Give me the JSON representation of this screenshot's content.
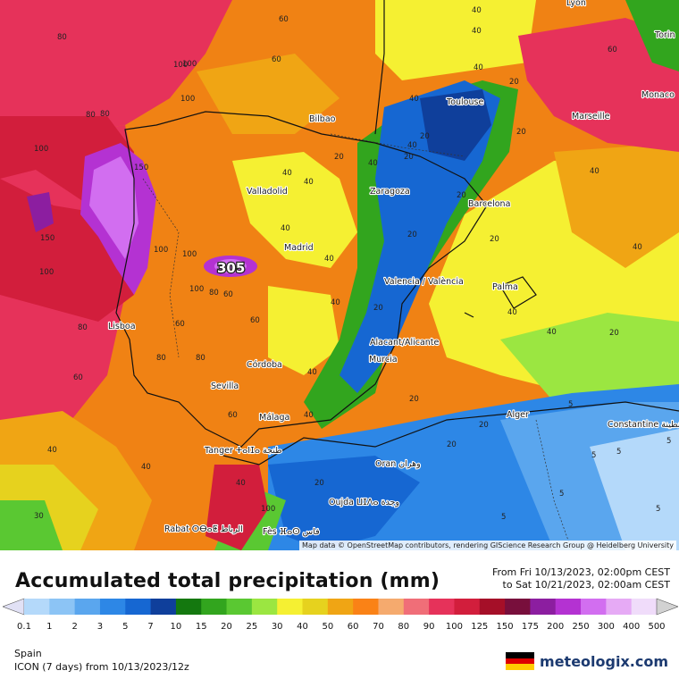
{
  "map": {
    "attribution": "Map data © OpenStreetMap contributors, rendering GIScience Research Group @ Heidelberg University",
    "max_label": "305",
    "cities": [
      {
        "name": "Bilbao"
      },
      {
        "name": "Toulouse"
      },
      {
        "name": "Marseille"
      },
      {
        "name": "Lyon"
      },
      {
        "name": "Torin"
      },
      {
        "name": "Monaco"
      },
      {
        "name": "Valladolid"
      },
      {
        "name": "Zaragoza"
      },
      {
        "name": "Barcelona"
      },
      {
        "name": "Madrid"
      },
      {
        "name": "Valencia / València"
      },
      {
        "name": "Palma"
      },
      {
        "name": "Lisboa"
      },
      {
        "name": "Alacant/Alicante"
      },
      {
        "name": "Murcia"
      },
      {
        "name": "Córdoba"
      },
      {
        "name": "Sevilla"
      },
      {
        "name": "Málaga"
      },
      {
        "name": "Alger"
      },
      {
        "name": "Constantine قسنطينة"
      },
      {
        "name": "Tanger ⵜⴰⵏⵊⴰ طنجة"
      },
      {
        "name": "Oran وهران"
      },
      {
        "name": "Oujda ⵡⵊⴷⴰ وجدة"
      },
      {
        "name": "Rabat ⵔⴱⴰⵟ الرباط"
      },
      {
        "name": "Fès ⴼⴰⵙ فاس"
      }
    ],
    "contour_labels": [
      "60",
      "60",
      "80",
      "100",
      "80",
      "100",
      "100",
      "150",
      "150",
      "100",
      "100",
      "80",
      "60",
      "40",
      "40",
      "40",
      "40",
      "40",
      "20",
      "20",
      "20",
      "20",
      "40",
      "40",
      "40",
      "20",
      "20",
      "40",
      "60",
      "40",
      "80",
      "80",
      "60",
      "60",
      "40",
      "20",
      "5",
      "5",
      "5",
      "20",
      "40",
      "30",
      "40",
      "60",
      "80",
      "100",
      "20",
      "40",
      "20",
      "40",
      "60",
      "100",
      "40",
      "20",
      "40",
      "20",
      "5",
      "5",
      "5",
      "5",
      "20",
      "40",
      "20",
      "40",
      "40",
      "100",
      "80",
      "100"
    ]
  },
  "legend": {
    "title": "Accumulated total precipitation (mm)",
    "period_from": "From Fri 10/13/2023, 02:00pm CEST",
    "period_to": "to Sat 10/21/2023, 02:00am CEST",
    "values": [
      "0.1",
      "1",
      "2",
      "3",
      "5",
      "7",
      "10",
      "15",
      "20",
      "25",
      "30",
      "40",
      "50",
      "60",
      "70",
      "80",
      "90",
      "100",
      "125",
      "150",
      "175",
      "200",
      "250",
      "300",
      "400",
      "500"
    ],
    "colors": [
      "#e1e1f5",
      "#b4d9fa",
      "#8cc4f5",
      "#5aa6ee",
      "#2d87e6",
      "#1667d2",
      "#0f3f9b",
      "#14780f",
      "#32a51e",
      "#5ac832",
      "#9be641",
      "#f5f032",
      "#e6d21e",
      "#f0a514",
      "#fa8216",
      "#f5aa6e",
      "#f06e78",
      "#e6325a",
      "#d21e3c",
      "#a50f28",
      "#780f3c",
      "#8c1ea0",
      "#b432d2",
      "#d26ef0",
      "#e6aaf5",
      "#f0dcfa",
      "#d2d2d2"
    ]
  },
  "footer": {
    "region": "Spain",
    "model": "ICON (7 days)  from  10/13/2023/12z",
    "brand": "meteologix.com",
    "flag_colors": [
      "#000000",
      "#dd0000",
      "#ffcc00"
    ]
  }
}
